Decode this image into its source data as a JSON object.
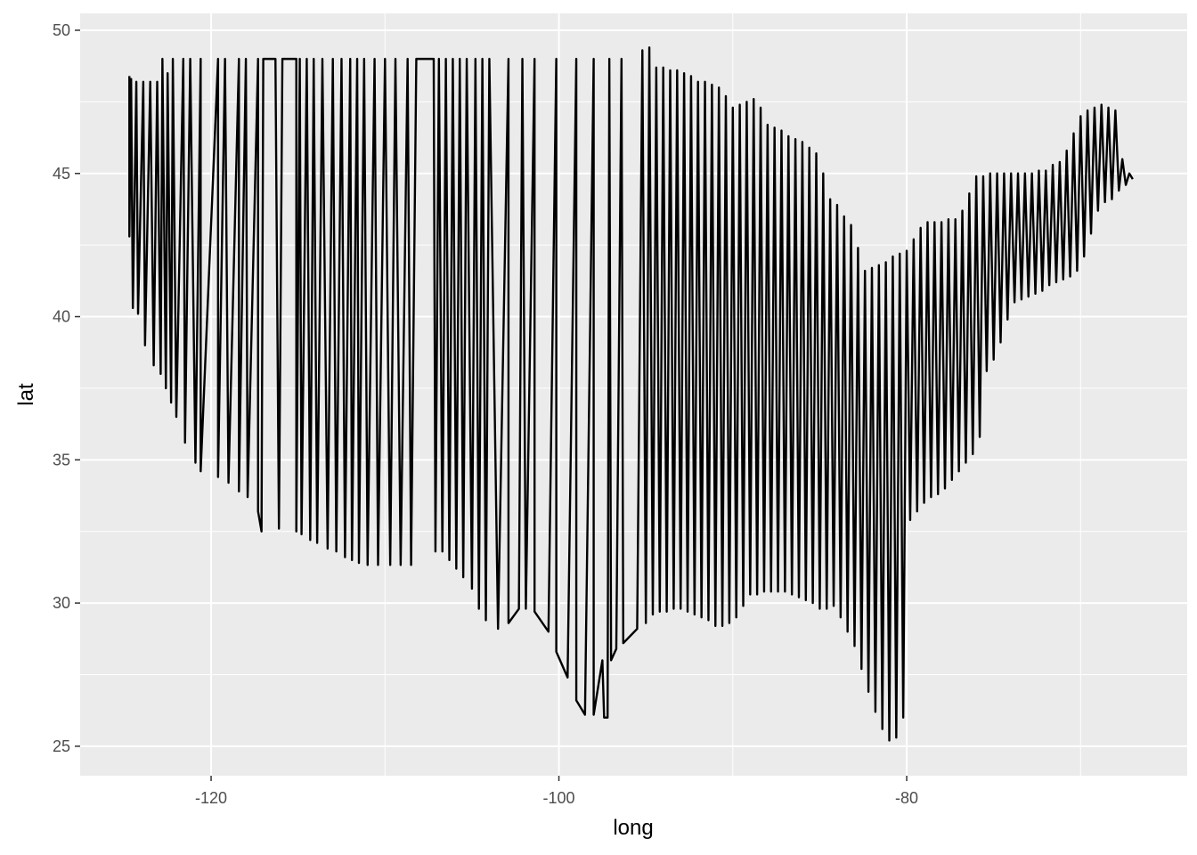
{
  "chart_data": {
    "type": "line",
    "x_label": "long",
    "y_label": "lat",
    "color": "#000000",
    "grid": true,
    "xlim": [
      -127.53,
      -63.87
    ],
    "ylim": [
      23.97,
      50.59
    ],
    "xticks": [
      -120,
      -100,
      -80
    ],
    "yticks": [
      25,
      30,
      35,
      40,
      45,
      50
    ],
    "x": [
      -124.7,
      -124.7,
      -124.6,
      -124.5,
      -124.3,
      -124.2,
      -123.9,
      -123.8,
      -123.5,
      -123.3,
      -123.1,
      -122.9,
      -122.8,
      -122.6,
      -122.5,
      -122.3,
      -122.2,
      -122.0,
      -121.6,
      -121.5,
      -121.2,
      -120.9,
      -120.6,
      -120.6,
      -119.6,
      -119.6,
      -119.2,
      -119.0,
      -118.4,
      -118.4,
      -118.0,
      -117.9,
      -117.3,
      -117.3,
      -117.1,
      -117.0,
      -116.3,
      -116.1,
      -115.9,
      -115.1,
      -115.1,
      -114.9,
      -114.8,
      -114.5,
      -114.3,
      -114.1,
      -113.9,
      -113.6,
      -113.3,
      -113.0,
      -112.8,
      -112.5,
      -112.3,
      -112.0,
      -111.9,
      -111.6,
      -111.5,
      -111.2,
      -111.0,
      -110.6,
      -110.4,
      -110.0,
      -109.7,
      -109.4,
      -109.1,
      -108.7,
      -108.5,
      -108.2,
      -107.2,
      -107.1,
      -106.9,
      -106.7,
      -106.5,
      -106.3,
      -106.1,
      -105.9,
      -105.7,
      -105.5,
      -105.3,
      -105.0,
      -104.8,
      -104.6,
      -104.4,
      -104.2,
      -104.0,
      -103.5,
      -102.9,
      -102.9,
      -102.3,
      -102.1,
      -101.9,
      -101.4,
      -101.4,
      -100.6,
      -100.15,
      -100.15,
      -99.5,
      -99.0,
      -99.0,
      -98.5,
      -98.0,
      -98.0,
      -97.5,
      -97.4,
      -97.2,
      -97.1,
      -97.0,
      -96.7,
      -96.4,
      -96.3,
      -95.5,
      -95.2,
      -95.0,
      -94.8,
      -94.6,
      -94.4,
      -94.2,
      -94.0,
      -93.8,
      -93.6,
      -93.4,
      -93.2,
      -93.0,
      -92.8,
      -92.6,
      -92.4,
      -92.2,
      -92.0,
      -91.8,
      -91.6,
      -91.4,
      -91.2,
      -91.0,
      -90.8,
      -90.6,
      -90.4,
      -90.2,
      -90.0,
      -89.8,
      -89.6,
      -89.4,
      -89.2,
      -89.0,
      -88.8,
      -88.6,
      -88.4,
      -88.2,
      -88.0,
      -87.8,
      -87.6,
      -87.4,
      -87.2,
      -87.0,
      -86.8,
      -86.6,
      -86.4,
      -86.2,
      -86.0,
      -85.8,
      -85.6,
      -85.4,
      -85.2,
      -85.0,
      -84.8,
      -84.6,
      -84.4,
      -84.2,
      -84.0,
      -83.8,
      -83.6,
      -83.4,
      -83.2,
      -83.0,
      -82.8,
      -82.6,
      -82.4,
      -82.2,
      -82.0,
      -81.8,
      -81.6,
      -81.4,
      -81.2,
      -81.0,
      -80.8,
      -80.6,
      -80.4,
      -80.2,
      -80.0,
      -79.8,
      -79.6,
      -79.4,
      -79.2,
      -79.0,
      -78.8,
      -78.6,
      -78.4,
      -78.2,
      -78.0,
      -77.8,
      -77.6,
      -77.4,
      -77.2,
      -77.0,
      -76.8,
      -76.6,
      -76.4,
      -76.2,
      -76.0,
      -75.8,
      -75.6,
      -75.4,
      -75.2,
      -75.0,
      -74.8,
      -74.6,
      -74.4,
      -74.2,
      -74.0,
      -73.8,
      -73.6,
      -73.4,
      -73.2,
      -73.0,
      -72.8,
      -72.6,
      -72.4,
      -72.2,
      -72.0,
      -71.8,
      -71.6,
      -71.4,
      -71.2,
      -71.0,
      -70.8,
      -70.6,
      -70.4,
      -70.2,
      -70.0,
      -69.8,
      -69.6,
      -69.4,
      -69.2,
      -69.0,
      -68.8,
      -68.6,
      -68.4,
      -68.2,
      -68.0,
      -67.8,
      -67.6,
      -67.4,
      -67.2,
      -67.0
    ],
    "values": [
      48.4,
      42.8,
      48.3,
      40.3,
      48.2,
      40.1,
      48.2,
      39.0,
      48.2,
      38.3,
      48.2,
      38.0,
      49.0,
      37.5,
      48.5,
      37.0,
      49.0,
      36.5,
      49.0,
      35.6,
      49.0,
      34.9,
      49.0,
      34.6,
      49.0,
      34.4,
      49.0,
      34.2,
      49.0,
      33.9,
      49.0,
      33.7,
      49.0,
      33.2,
      32.5,
      49.0,
      49.0,
      32.6,
      49.0,
      49.0,
      32.5,
      49.0,
      32.4,
      49.0,
      32.2,
      49.0,
      32.1,
      49.0,
      31.9,
      49.0,
      31.8,
      49.0,
      31.6,
      49.0,
      31.5,
      49.0,
      31.4,
      49.0,
      31.33,
      49.0,
      31.33,
      49.0,
      31.33,
      49.0,
      31.33,
      49.0,
      31.33,
      49.0,
      49.0,
      31.8,
      49.0,
      31.8,
      49.0,
      31.5,
      49.0,
      31.2,
      49.0,
      30.9,
      49.0,
      30.5,
      49.0,
      29.8,
      49.0,
      29.4,
      49.0,
      29.1,
      49.0,
      29.3,
      29.8,
      49.0,
      29.8,
      49.0,
      29.7,
      29.0,
      49.0,
      28.3,
      27.4,
      49.0,
      26.6,
      26.1,
      49.0,
      26.1,
      28.0,
      26.0,
      26.0,
      49.0,
      28.0,
      28.4,
      49.0,
      28.6,
      29.1,
      49.3,
      29.3,
      49.4,
      29.6,
      48.7,
      29.7,
      48.7,
      29.7,
      48.6,
      29.8,
      48.6,
      29.8,
      48.5,
      29.7,
      48.4,
      29.6,
      48.2,
      29.5,
      48.2,
      29.4,
      48.1,
      29.2,
      48.0,
      29.2,
      47.7,
      29.3,
      47.3,
      29.5,
      47.4,
      29.9,
      47.5,
      30.3,
      47.6,
      30.3,
      47.3,
      30.4,
      46.7,
      30.4,
      46.6,
      30.4,
      46.5,
      30.4,
      46.3,
      30.3,
      46.2,
      30.2,
      46.1,
      30.1,
      45.9,
      30.0,
      45.7,
      29.8,
      45.0,
      29.8,
      44.1,
      29.9,
      43.9,
      29.5,
      43.5,
      29.0,
      43.2,
      28.5,
      42.4,
      27.7,
      41.6,
      26.9,
      41.7,
      26.2,
      41.8,
      25.6,
      41.9,
      25.2,
      42.1,
      25.3,
      42.2,
      26.0,
      42.3,
      32.9,
      42.7,
      33.2,
      43.1,
      33.5,
      43.3,
      33.7,
      43.3,
      33.8,
      43.3,
      34.0,
      43.4,
      34.3,
      43.4,
      34.6,
      43.7,
      34.9,
      44.3,
      35.2,
      44.9,
      35.8,
      44.9,
      38.1,
      45.0,
      38.5,
      45.0,
      39.1,
      45.0,
      39.9,
      45.0,
      40.5,
      45.0,
      40.6,
      45.0,
      40.7,
      45.0,
      40.8,
      45.1,
      40.9,
      45.1,
      41.1,
      45.3,
      41.2,
      45.4,
      41.3,
      45.8,
      41.4,
      46.4,
      41.6,
      47.0,
      42.1,
      47.2,
      42.9,
      47.3,
      43.7,
      47.4,
      44.0,
      47.3,
      44.1,
      47.2,
      44.4,
      45.5,
      44.6,
      45.0,
      44.8
    ]
  }
}
